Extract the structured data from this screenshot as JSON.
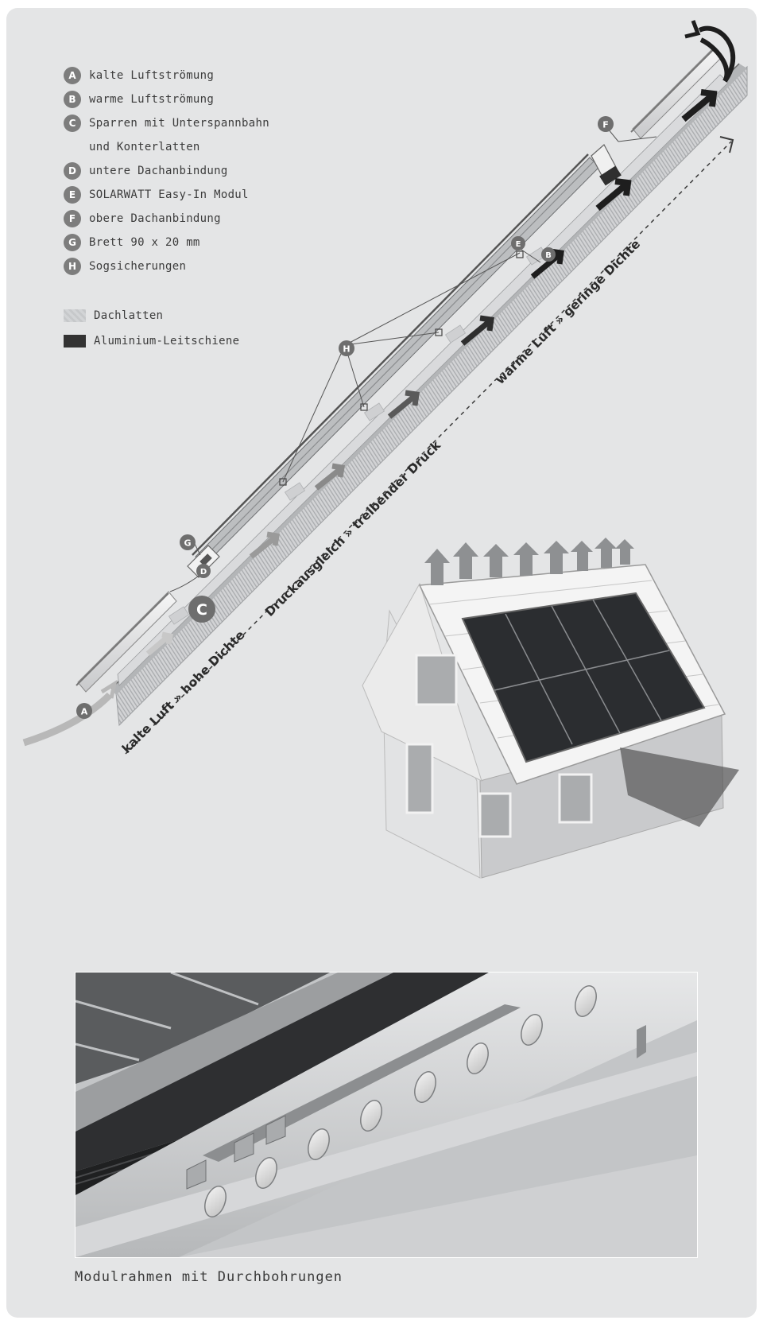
{
  "legend": [
    {
      "key": "A",
      "label": "kalte Luftströmung"
    },
    {
      "key": "B",
      "label": "warme Luftströmung"
    },
    {
      "key": "C",
      "label": "Sparren mit Unterspannbahn",
      "label2": "und Konterlatten"
    },
    {
      "key": "D",
      "label": "untere Dachanbindung"
    },
    {
      "key": "E",
      "label": "SOLARWATT Easy-In Modul"
    },
    {
      "key": "F",
      "label": "obere Dachanbindung"
    },
    {
      "key": "G",
      "label": "Brett 90 x 20 mm"
    },
    {
      "key": "H",
      "label": "Sogsicherungen"
    }
  ],
  "swatches": {
    "dachlatten": "Dachlatten",
    "leitschiene": "Aluminium-Leitschiene"
  },
  "roof_labels": {
    "cold": "kalte Luft » hohe Dichte",
    "pressure": "Druckausgleich » treibender Druck",
    "warm": "warme Luft » geringe Dichte"
  },
  "markers": {
    "A": "A",
    "B": "B",
    "C": "C",
    "D": "D",
    "E": "E",
    "F": "F",
    "G": "G",
    "H": "H"
  },
  "caption": "Modulrahmen mit Durchbohrungen",
  "colors": {
    "background": "#e4e5e6",
    "badge": "#7d7d7d",
    "rail": "#333333",
    "cold_arrow": "#b8b8b8",
    "warm_arrow": "#1e1e1e"
  }
}
